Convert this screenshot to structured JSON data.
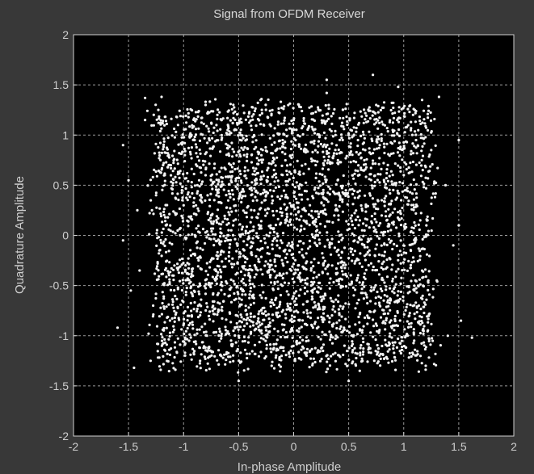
{
  "window": {
    "title": "Signal from OFDM Receiver",
    "background_color": "#383838"
  },
  "chart_data": {
    "type": "scatter",
    "title": "Signal from OFDM Receiver",
    "xlabel": "In-phase Amplitude",
    "ylabel": "Quadrature Amplitude",
    "xlim": [
      -2,
      2
    ],
    "ylim": [
      -2,
      2
    ],
    "x_ticks": [
      -2,
      -1.5,
      -1,
      -0.5,
      0,
      0.5,
      1,
      1.5,
      2
    ],
    "y_ticks": [
      -2,
      -1.5,
      -1,
      -0.5,
      0,
      0.5,
      1,
      1.5,
      2
    ],
    "x_tick_labels": [
      "-2",
      "-1.5",
      "-1",
      "-0.5",
      "0",
      "0.5",
      "1",
      "1.5",
      "2"
    ],
    "y_tick_labels": [
      "-2",
      "-1.5",
      "-1",
      "-0.5",
      "0",
      "0.5",
      "1",
      "1.5",
      "2"
    ],
    "grid": true,
    "plot_background": "#000000",
    "marker_color": "#f2f2f2",
    "grid_color": "#9a9a9a",
    "series": [
      {
        "points": [
          [
            -1.55,
            0.9
          ],
          [
            -1.5,
            0.55
          ],
          [
            -1.55,
            -0.05
          ],
          [
            -1.6,
            -0.92
          ],
          [
            -1.48,
            -0.55
          ],
          [
            -1.45,
            -1.32
          ],
          [
            -1.35,
            1.37
          ],
          [
            -1.4,
            -0.35
          ],
          [
            -1.42,
            0.25
          ],
          [
            -1.35,
            1.15
          ],
          [
            -1.3,
            -1.25
          ],
          [
            -1.2,
            1.38
          ],
          [
            -1.18,
            0.72
          ],
          [
            -1.22,
            -0.15
          ],
          [
            -1.15,
            -0.82
          ],
          [
            -1.25,
            0.4
          ],
          [
            -1.05,
            1.1
          ],
          [
            -1.0,
            0.3
          ],
          [
            -0.95,
            -1.05
          ],
          [
            -1.1,
            -0.4
          ],
          [
            -0.9,
            0.95
          ],
          [
            -0.8,
            1.3
          ],
          [
            -0.75,
            0.55
          ],
          [
            -0.7,
            -0.2
          ],
          [
            -0.85,
            -1.25
          ],
          [
            -0.65,
            -0.75
          ],
          [
            -0.6,
            1.05
          ],
          [
            -0.55,
            0.1
          ],
          [
            -0.5,
            -1.0
          ],
          [
            -0.45,
            0.8
          ],
          [
            -0.4,
            -0.45
          ],
          [
            -0.3,
            1.35
          ],
          [
            -0.25,
            0.4
          ],
          [
            -0.2,
            -1.3
          ],
          [
            -0.15,
            -0.1
          ],
          [
            -0.1,
            0.95
          ],
          [
            0.0,
            1.15
          ],
          [
            0.05,
            -0.6
          ],
          [
            0.1,
            0.25
          ],
          [
            0.15,
            -1.15
          ],
          [
            0.2,
            0.7
          ],
          [
            0.3,
            1.42
          ],
          [
            0.35,
            -0.3
          ],
          [
            0.4,
            0.55
          ],
          [
            0.45,
            -0.95
          ],
          [
            0.5,
            1.0
          ],
          [
            0.55,
            0.0
          ],
          [
            0.6,
            -1.35
          ],
          [
            0.65,
            0.85
          ],
          [
            0.7,
            -0.55
          ],
          [
            0.75,
            1.3
          ],
          [
            0.8,
            0.35
          ],
          [
            0.85,
            -1.1
          ],
          [
            0.9,
            1.05
          ],
          [
            0.95,
            -0.2
          ],
          [
            1.0,
            0.6
          ],
          [
            1.05,
            -0.8
          ],
          [
            1.1,
            1.25
          ],
          [
            1.15,
            0.15
          ],
          [
            1.2,
            -1.3
          ],
          [
            1.25,
            0.85
          ],
          [
            1.3,
            -0.45
          ],
          [
            1.32,
            1.38
          ],
          [
            1.38,
            0.5
          ],
          [
            1.4,
            -1.0
          ],
          [
            1.45,
            -0.1
          ],
          [
            1.5,
            0.95
          ],
          [
            1.52,
            -0.85
          ],
          [
            1.62,
            -1.02
          ],
          [
            0.72,
            1.6
          ],
          [
            0.3,
            1.55
          ],
          [
            0.5,
            -1.45
          ],
          [
            -0.5,
            -1.45
          ],
          [
            0.95,
            1.48
          ],
          [
            1.5,
            0.1
          ]
        ]
      }
    ]
  }
}
